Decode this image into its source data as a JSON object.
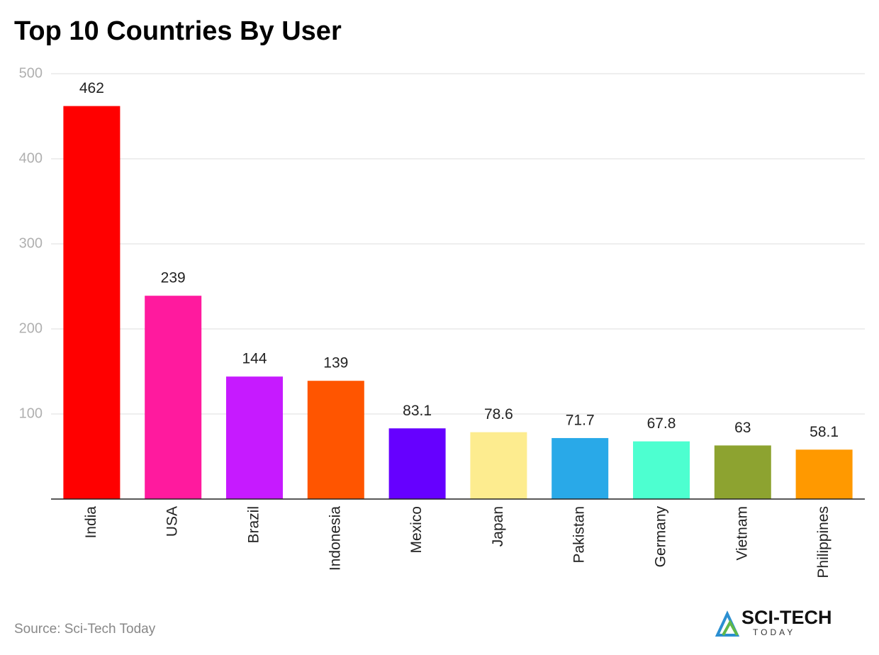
{
  "chart_data": {
    "type": "bar",
    "title": "Top 10 Countries By User",
    "categories": [
      "India",
      "USA",
      "Brazil",
      "Indonesia",
      "Mexico",
      "Japan",
      "Pakistan",
      "Germany",
      "Vietnam",
      "Philippines"
    ],
    "values": [
      462,
      239,
      144,
      139,
      83.1,
      78.6,
      71.7,
      67.8,
      63,
      58.1
    ],
    "colors": [
      "#ff0000",
      "#ff1a9e",
      "#c61aff",
      "#ff5500",
      "#6600ff",
      "#fdec8f",
      "#29a9e8",
      "#4dffd0",
      "#8da330",
      "#ff9900"
    ],
    "ylim": [
      0,
      500
    ],
    "yticks": [
      100,
      200,
      300,
      400,
      500
    ],
    "grid": true,
    "source": "Source: Sci-Tech Today"
  },
  "logo": {
    "name": "SCI-TECH",
    "tagline": "TODAY"
  }
}
